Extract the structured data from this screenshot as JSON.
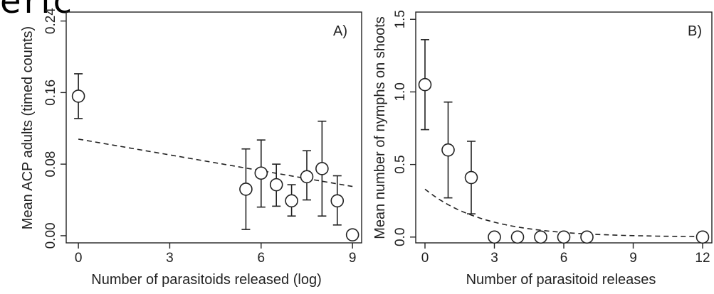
{
  "top_fragment": "eric",
  "chart_data": [
    {
      "type": "scatter",
      "panel_label": "A)",
      "xlabel": "Number of parasitoids released (log)",
      "ylabel": "Mean ACP adults (timed counts)",
      "xlim": [
        -0.4,
        9.3
      ],
      "ylim": [
        -0.008,
        0.25
      ],
      "xticks": [
        0,
        3,
        6,
        9
      ],
      "xtick_labels": [
        "0",
        "3",
        "6",
        "9"
      ],
      "yticks": [
        0,
        0.08,
        0.16,
        0.24
      ],
      "ytick_labels": [
        "0.00",
        "0.08",
        "0.16",
        "0.24"
      ],
      "points": [
        {
          "x": 0,
          "y": 0.156,
          "lo": 0.131,
          "hi": 0.181
        },
        {
          "x": 5.5,
          "y": 0.052,
          "lo": 0.007,
          "hi": 0.097
        },
        {
          "x": 6.0,
          "y": 0.07,
          "lo": 0.032,
          "hi": 0.107
        },
        {
          "x": 6.5,
          "y": 0.057,
          "lo": 0.033,
          "hi": 0.08
        },
        {
          "x": 7.0,
          "y": 0.039,
          "lo": 0.022,
          "hi": 0.057
        },
        {
          "x": 7.5,
          "y": 0.066,
          "lo": 0.04,
          "hi": 0.095
        },
        {
          "x": 8.0,
          "y": 0.075,
          "lo": 0.022,
          "hi": 0.128
        },
        {
          "x": 8.5,
          "y": 0.039,
          "lo": 0.012,
          "hi": 0.067
        },
        {
          "x": 9.0,
          "y": 0.001
        }
      ],
      "fit_line": {
        "style": "dashed",
        "x": [
          0,
          9.0
        ],
        "y": [
          0.108,
          0.055
        ]
      },
      "grid": false,
      "legend": "none"
    },
    {
      "type": "scatter",
      "panel_label": "B)",
      "xlabel": "Number of parasitoid releases",
      "ylabel": "Mean number of nymphs on shoots",
      "xlim": [
        -0.4,
        12.4
      ],
      "ylim": [
        -0.04,
        1.55
      ],
      "xticks": [
        0,
        3,
        6,
        9,
        12
      ],
      "xtick_labels": [
        "0",
        "3",
        "6",
        "9",
        "12"
      ],
      "yticks": [
        0,
        0.5,
        1.0,
        1.5
      ],
      "ytick_labels": [
        "0.0",
        "0.5",
        "1.0",
        "1.5"
      ],
      "points": [
        {
          "x": 0,
          "y": 1.05,
          "lo": 0.74,
          "hi": 1.36
        },
        {
          "x": 1,
          "y": 0.6,
          "lo": 0.27,
          "hi": 0.93
        },
        {
          "x": 2,
          "y": 0.41,
          "lo": 0.16,
          "hi": 0.66
        },
        {
          "x": 3,
          "y": 0.0
        },
        {
          "x": 4,
          "y": 0.0
        },
        {
          "x": 5,
          "y": 0.0
        },
        {
          "x": 6,
          "y": 0.0
        },
        {
          "x": 7,
          "y": 0.0
        },
        {
          "x": 12,
          "y": 0.0
        }
      ],
      "fit_curve": {
        "style": "dashed",
        "model": "exponential",
        "a": 0.33,
        "b": -0.39,
        "x_range": [
          0,
          12
        ]
      },
      "grid": false,
      "legend": "none"
    }
  ]
}
